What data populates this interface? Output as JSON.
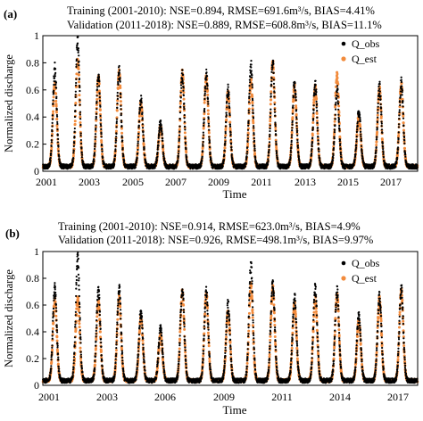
{
  "chart_data": [
    {
      "panel_label": "(a)",
      "type": "scatter",
      "annotations": [
        "Training (2001-2010): NSE=0.894, RMSE=691.6m³/s, BIAS=4.41%",
        "Validation (2011-2018): NSE=0.889, RMSE=608.8m³/s, BIAS=11.1%"
      ],
      "xlabel": "Time",
      "ylabel": "Normalized discharge",
      "x_ticks": [
        "2001",
        "2003",
        "2005",
        "2007",
        "2009",
        "2011",
        "2013",
        "2015",
        "2017"
      ],
      "y_ticks": [
        "0",
        "0.2",
        "0.4",
        "0.6",
        "0.8",
        "1"
      ],
      "xlim": [
        2001.0,
        2018.2
      ],
      "ylim": [
        0,
        1
      ],
      "legend": [
        "Q_obs",
        "Q_est"
      ],
      "legend_position": "top-right",
      "colors": {
        "Q_obs": "#000000",
        "Q_est": "#f28b3c"
      },
      "series": [
        {
          "name": "Q_obs",
          "peaks": [
            {
              "x": 2001.55,
              "y": 0.75
            },
            {
              "x": 2002.6,
              "y": 0.95
            },
            {
              "x": 2003.55,
              "y": 0.72
            },
            {
              "x": 2004.5,
              "y": 0.73
            },
            {
              "x": 2005.5,
              "y": 0.52
            },
            {
              "x": 2006.4,
              "y": 0.35
            },
            {
              "x": 2007.4,
              "y": 0.72
            },
            {
              "x": 2008.5,
              "y": 0.72
            },
            {
              "x": 2009.5,
              "y": 0.6
            },
            {
              "x": 2010.55,
              "y": 0.78
            },
            {
              "x": 2011.55,
              "y": 0.8
            },
            {
              "x": 2012.55,
              "y": 0.65
            },
            {
              "x": 2013.5,
              "y": 0.63
            },
            {
              "x": 2014.5,
              "y": 0.6
            },
            {
              "x": 2015.5,
              "y": 0.43
            },
            {
              "x": 2016.45,
              "y": 0.62
            },
            {
              "x": 2017.45,
              "y": 0.65
            }
          ]
        },
        {
          "name": "Q_est",
          "peaks": [
            {
              "x": 2001.55,
              "y": 0.64
            },
            {
              "x": 2002.6,
              "y": 0.82
            },
            {
              "x": 2003.55,
              "y": 0.68
            },
            {
              "x": 2004.5,
              "y": 0.72
            },
            {
              "x": 2005.5,
              "y": 0.5
            },
            {
              "x": 2006.4,
              "y": 0.33
            },
            {
              "x": 2007.4,
              "y": 0.72
            },
            {
              "x": 2008.5,
              "y": 0.7
            },
            {
              "x": 2009.5,
              "y": 0.57
            },
            {
              "x": 2010.55,
              "y": 0.66
            },
            {
              "x": 2011.55,
              "y": 0.8
            },
            {
              "x": 2012.55,
              "y": 0.63
            },
            {
              "x": 2013.5,
              "y": 0.62
            },
            {
              "x": 2014.5,
              "y": 0.7
            },
            {
              "x": 2015.5,
              "y": 0.4
            },
            {
              "x": 2016.45,
              "y": 0.6
            },
            {
              "x": 2017.45,
              "y": 0.63
            }
          ]
        }
      ]
    },
    {
      "panel_label": "(b)",
      "type": "scatter",
      "annotations": [
        "Training (2001-2010): NSE=0.914, RMSE=623.0m³/s, BIAS=4.9%",
        "Validation (2011-2018): NSE=0.926, RMSE=498.1m³/s, BIAS=9.97%"
      ],
      "xlabel": "Time",
      "ylabel": "Normalized discharge",
      "x_ticks": [
        "2001",
        "2003",
        "2006",
        "2009",
        "2011",
        "2014",
        "2017"
      ],
      "y_ticks": [
        "0",
        "0.2",
        "0.4",
        "0.6",
        "0.8",
        "1"
      ],
      "xlim": [
        2001.0,
        2018.2
      ],
      "ylim": [
        0,
        1
      ],
      "legend": [
        "Q_obs",
        "Q_est"
      ],
      "legend_position": "top-right",
      "colors": {
        "Q_obs": "#000000",
        "Q_est": "#f28b3c"
      },
      "series": [
        {
          "name": "Q_obs",
          "peaks": [
            {
              "x": 2001.55,
              "y": 0.72
            },
            {
              "x": 2002.6,
              "y": 0.95
            },
            {
              "x": 2003.55,
              "y": 0.7
            },
            {
              "x": 2004.5,
              "y": 0.72
            },
            {
              "x": 2005.5,
              "y": 0.55
            },
            {
              "x": 2006.4,
              "y": 0.42
            },
            {
              "x": 2007.4,
              "y": 0.72
            },
            {
              "x": 2008.5,
              "y": 0.7
            },
            {
              "x": 2009.5,
              "y": 0.6
            },
            {
              "x": 2010.55,
              "y": 0.9
            },
            {
              "x": 2011.55,
              "y": 0.78
            },
            {
              "x": 2012.55,
              "y": 0.65
            },
            {
              "x": 2013.5,
              "y": 0.72
            },
            {
              "x": 2014.5,
              "y": 0.7
            },
            {
              "x": 2015.5,
              "y": 0.52
            },
            {
              "x": 2016.45,
              "y": 0.66
            },
            {
              "x": 2017.45,
              "y": 0.72
            }
          ]
        },
        {
          "name": "Q_est",
          "peaks": [
            {
              "x": 2001.55,
              "y": 0.63
            },
            {
              "x": 2002.6,
              "y": 0.65
            },
            {
              "x": 2003.55,
              "y": 0.62
            },
            {
              "x": 2004.5,
              "y": 0.65
            },
            {
              "x": 2005.5,
              "y": 0.5
            },
            {
              "x": 2006.4,
              "y": 0.38
            },
            {
              "x": 2007.4,
              "y": 0.7
            },
            {
              "x": 2008.5,
              "y": 0.68
            },
            {
              "x": 2009.5,
              "y": 0.55
            },
            {
              "x": 2010.55,
              "y": 0.75
            },
            {
              "x": 2011.55,
              "y": 0.72
            },
            {
              "x": 2012.55,
              "y": 0.6
            },
            {
              "x": 2013.5,
              "y": 0.65
            },
            {
              "x": 2014.5,
              "y": 0.68
            },
            {
              "x": 2015.5,
              "y": 0.48
            },
            {
              "x": 2016.45,
              "y": 0.64
            },
            {
              "x": 2017.45,
              "y": 0.7
            }
          ]
        }
      ]
    }
  ]
}
